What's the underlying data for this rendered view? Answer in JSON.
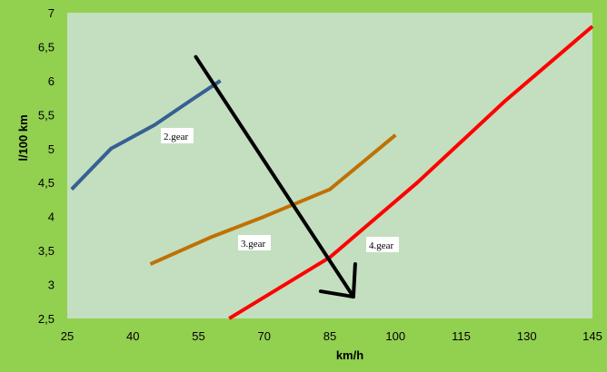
{
  "chart_data": {
    "type": "line",
    "title": "",
    "xlabel": "km/h",
    "ylabel": "l/100 km",
    "xlim": [
      25,
      145
    ],
    "ylim": [
      2.5,
      7
    ],
    "x_ticks": [
      "25",
      "40",
      "55",
      "70",
      "85",
      "100",
      "115",
      "130",
      "145"
    ],
    "y_ticks": [
      "2,5",
      "3",
      "3,5",
      "4",
      "4,5",
      "5",
      "5,5",
      "6",
      "6,5",
      "7"
    ],
    "grid": false,
    "legend": "none",
    "series": [
      {
        "name": "2.gear",
        "color": "#376092",
        "x": [
          26,
          35,
          45,
          53,
          60
        ],
        "y": [
          4.4,
          5.0,
          5.35,
          5.7,
          6.0
        ]
      },
      {
        "name": "3.gear",
        "color": "#c07000",
        "x": [
          44,
          58,
          70,
          85,
          100
        ],
        "y": [
          3.3,
          3.7,
          4.0,
          4.4,
          5.2
        ]
      },
      {
        "name": "4.gear",
        "color": "#ff0000",
        "x": [
          62,
          85,
          105,
          125,
          145
        ],
        "y": [
          2.5,
          3.4,
          4.5,
          5.7,
          6.8
        ]
      }
    ],
    "arrow": {
      "color": "#000000",
      "from": [
        55,
        6.35
      ],
      "to": [
        91,
        2.82
      ]
    },
    "colors": {
      "page_background": "#92d050",
      "plot_background": "#c3dfc0"
    }
  }
}
